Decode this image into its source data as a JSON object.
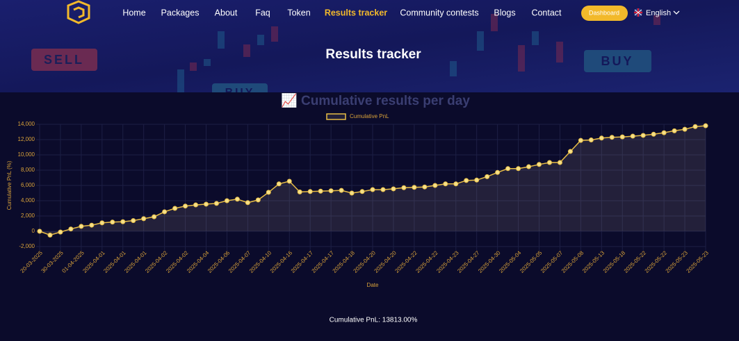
{
  "nav": {
    "items": [
      "Home",
      "Packages",
      "About",
      "Faq",
      "Token",
      "Results tracker",
      "Community contests",
      "Blogs",
      "Contact"
    ],
    "button": "Dashboard",
    "language": "English"
  },
  "hero": {
    "title": "Results tracker",
    "decor": [
      "SELL",
      "BUY",
      "BUY"
    ]
  },
  "chart_data": {
    "type": "line",
    "title": "📈 Cumulative results per day",
    "xlabel": "Date",
    "ylabel": "Cumulative PnL (%)",
    "categories": [
      "20-03-2025",
      null,
      "30-03-2025",
      null,
      "01-04-2025",
      null,
      "2025-04-01",
      null,
      "2025-04-01",
      null,
      "2025-04-01",
      null,
      "2025-04-02",
      null,
      "2025-04-02",
      null,
      "2025-04-04",
      null,
      "2025-04-06",
      null,
      "2025-04-07",
      null,
      "2025-04-10",
      null,
      "2025-04-16",
      null,
      "2025-04-17",
      null,
      "2025-04-17",
      null,
      "2025-04-18",
      null,
      "2025-04-20",
      null,
      "2025-04-20",
      null,
      "2025-04-22",
      null,
      "2025-04-22",
      null,
      "2025-04-23",
      null,
      "2025-04-27",
      null,
      "2025-04-30",
      null,
      "2025-05-04",
      null,
      "2025-05-05",
      null,
      "2025-05-07",
      null,
      "2025-05-08",
      null,
      "2025-05-13",
      null,
      "2025-05-18",
      null,
      "2025-05-22",
      null,
      "2025-05-22",
      null,
      "2025-05-23",
      null,
      "2025-05-23"
    ],
    "series": [
      {
        "name": "Cumulative PnL",
        "color": "#e8bd45",
        "values": [
          0,
          -500,
          -100,
          300,
          650,
          800,
          1100,
          1200,
          1250,
          1400,
          1650,
          1900,
          2550,
          3000,
          3300,
          3450,
          3550,
          3650,
          4000,
          4200,
          3750,
          4100,
          5100,
          6200,
          6550,
          5150,
          5200,
          5250,
          5300,
          5350,
          5000,
          5200,
          5450,
          5450,
          5550,
          5700,
          5750,
          5800,
          6000,
          6200,
          6200,
          6650,
          6700,
          7150,
          7700,
          8200,
          8200,
          8450,
          8750,
          9000,
          9000,
          10450,
          11900,
          11950,
          12200,
          12300,
          12350,
          12450,
          12550,
          12700,
          12900,
          13150,
          13350,
          13700,
          13813
        ]
      }
    ],
    "ylim": [
      -2000,
      14000
    ],
    "yticks": [
      {
        "value": -2000,
        "label": "-2,000"
      },
      0,
      {
        "value": 2000,
        "label": "2,000"
      },
      {
        "value": 4000,
        "label": "4,000"
      },
      {
        "value": 6000,
        "label": "6,000"
      },
      {
        "value": 8000,
        "label": "8,000"
      },
      {
        "value": 10000,
        "label": "10,000"
      },
      {
        "value": 12000,
        "label": "12,000"
      },
      {
        "value": 14000,
        "label": "14,000"
      }
    ],
    "grid": true,
    "legend": "top"
  },
  "summary": "Cumulative PnL: 13813.00%"
}
